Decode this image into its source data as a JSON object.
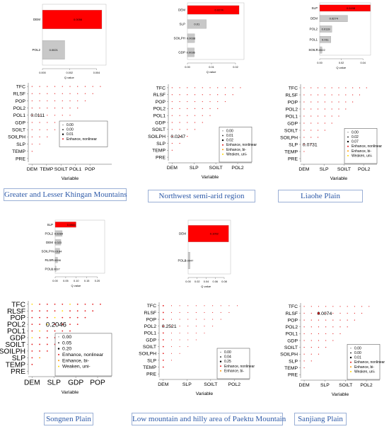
{
  "chart_data": [
    {
      "panel": "Greater and Lesser Khingan Mountains",
      "type": "bar",
      "caption": "Greater and Lesser Khingan Mountains",
      "bar": {
        "categories": [
          "DEM",
          "POL2"
        ],
        "values": [
          0.0056,
          0.0021
        ],
        "value_labels": [
          "0.0056",
          "0.0021"
        ],
        "xlabel": "Q value",
        "xticks": [
          "0.000",
          "0.002",
          "0.004"
        ],
        "xlim": [
          0,
          0.006
        ]
      },
      "matrix": {
        "variables": [
          "TFC",
          "RLSF",
          "POP",
          "POL2",
          "POL1",
          "GDP",
          "SOILT",
          "SOILPH",
          "SLP",
          "TEMP",
          "PRE"
        ],
        "x_ticks": [
          "DEM",
          "TEMP",
          "SOILT",
          "POL1",
          "POP"
        ],
        "x_count": 11,
        "xlabel": "Variable",
        "annotation": {
          "text": "0.0111",
          "row": "POL1",
          "col": 0
        },
        "legend": [
          "0.00",
          "0.00",
          "0.01",
          "Enhance, nonlinear"
        ]
      }
    },
    {
      "panel": "Northwest semi-arid region",
      "type": "bar",
      "caption": "Northwest semi-arid region",
      "bar": {
        "categories": [
          "DEM",
          "SLP",
          "SOILPH",
          "GDP"
        ],
        "values": [
          0.0274,
          0.01,
          0.0038,
          0.0036
        ],
        "value_labels": [
          "0.0274",
          "0.01",
          "0.0038",
          "0.0036"
        ],
        "xlabel": "Q value",
        "xticks": [
          "0.00",
          "0.01",
          "0.02"
        ],
        "xlim": [
          0,
          0.03
        ]
      },
      "matrix": {
        "variables": [
          "TFC",
          "RLSF",
          "POP",
          "POL2",
          "POL1",
          "GDP",
          "SOILT",
          "SOILPH",
          "SLP",
          "TEMP",
          "PRE"
        ],
        "x_ticks": [
          "DEM",
          "SLP",
          "SOILT",
          "POL2"
        ],
        "x_count": 11,
        "xlabel": "Variable",
        "annotation": {
          "text": "0.0247",
          "row": "SOILPH",
          "col": 0
        },
        "legend": [
          "0.00",
          "0.01",
          "0.02",
          "Enhance, nonlinear",
          "Enhance, bi-",
          "Weaken, uni-"
        ]
      }
    },
    {
      "panel": "Liaohe Plain",
      "type": "bar",
      "caption": "Liaohe Plain",
      "bar": {
        "categories": [
          "SLP",
          "DEM",
          "POL2",
          "POL1",
          "SOILT"
        ],
        "values": [
          0.0498,
          0.0274,
          0.0119,
          0.011,
          0.0022
        ],
        "value_labels": [
          "0.0498",
          "0.0274",
          "0.0119",
          "0.011",
          "0.0022"
        ],
        "xlabel": "Q value",
        "xticks": [
          "0.00",
          "0.02",
          "0.04"
        ],
        "xlim": [
          0,
          0.05
        ]
      },
      "matrix": {
        "variables": [
          "TFC",
          "RLSF",
          "POP",
          "POL2",
          "POL1",
          "GDP",
          "SOILT",
          "SOILPH",
          "SLP",
          "TEMP",
          "PRE"
        ],
        "x_ticks": [
          "DEM",
          "SLP",
          "SOILT",
          "POL2"
        ],
        "x_count": 11,
        "xlabel": "Variable",
        "annotation": {
          "text": "0.0731",
          "row": "SLP",
          "col": 0
        },
        "legend": [
          "0.00",
          "0.02",
          "0.07",
          "Enhance, nonlinear",
          "Enhance, bi-",
          "Weaken, uni-"
        ]
      }
    },
    {
      "panel": "Songnen Plain",
      "type": "bar",
      "caption": "Songnen Plain",
      "bar": {
        "categories": [
          "SLP",
          "POL2",
          "DEM",
          "SOILPH",
          "RLSF",
          "POL1"
        ],
        "values": [
          0.0844,
          0.0284,
          0.023,
          0.0184,
          0.0098,
          0.0037
        ],
        "value_labels": [
          "0.0844",
          "0.0284",
          "0.023",
          "0.0184",
          "0.0098",
          "0.0037"
        ],
        "xlabel": "Q value",
        "xticks": [
          "0.00",
          "0.05",
          "0.10",
          "0.15",
          "0.20"
        ],
        "xlim": [
          0,
          0.2
        ]
      },
      "matrix": {
        "variables": [
          "TFC",
          "RLSF",
          "POP",
          "POL2",
          "POL1",
          "GDP",
          "SOILT",
          "SOILPH",
          "SLP",
          "TEMP",
          "PRE"
        ],
        "x_ticks": [
          "DEM",
          "SLP",
          "GDP",
          "POP"
        ],
        "x_count": 11,
        "xlabel": "Variable",
        "annotation": {
          "text": "0.2046",
          "row": "POL2",
          "col": 2
        },
        "legend": [
          "0.00",
          "0.05",
          "0.20",
          "Enhance, nonlinear",
          "Enhance, bi-",
          "Weaken, uni-"
        ]
      }
    },
    {
      "panel": "Low mountain and hilly area of Paektu Mountain",
      "type": "bar",
      "caption": "Low mountain and hilly area of Paektu Mountain",
      "bar": {
        "categories": [
          "DEM",
          "POL2"
        ],
        "values": [
          0.1052,
          0.0047
        ],
        "value_labels": [
          "0.1052",
          "0.0047"
        ],
        "xlabel": "Q value",
        "xticks": [
          "0.00",
          "0.02",
          "0.04",
          "0.06",
          "0.08"
        ],
        "xlim": [
          0,
          0.11
        ]
      },
      "matrix": {
        "variables": [
          "TFC",
          "RLSF",
          "POP",
          "POL2",
          "POL1",
          "GDP",
          "SOILT",
          "SOILPH",
          "SLP",
          "TEMP",
          "PRE"
        ],
        "x_ticks": [
          "DEM",
          "SLP",
          "SOILT",
          "POL2"
        ],
        "x_count": 11,
        "xlabel": "Variable",
        "annotation": {
          "text": "0.2521",
          "row": "POL2",
          "col": 0
        },
        "legend": [
          "0.00",
          "0.04",
          "0.25",
          "Enhance, nonlinear",
          "Enhance, bi-"
        ]
      }
    },
    {
      "panel": "Sanjiang Plain",
      "type": "scatter",
      "caption": "Sanjiang Plain",
      "matrix": {
        "variables": [
          "TFC",
          "RLSF",
          "POP",
          "POL2",
          "POL1",
          "GDP",
          "SOILT",
          "SOILPH",
          "SLP",
          "TEMP",
          "PRE"
        ],
        "x_ticks": [
          "DEM",
          "SLP",
          "SOILT",
          "POL2"
        ],
        "x_count": 11,
        "xlabel": "Variable",
        "annotation": {
          "text": "0.0074",
          "row": "RLSF",
          "col": 2
        },
        "legend": [
          "0.00",
          "0.00",
          "0.01",
          "Enhance, nonlinear",
          "Enhance, bi-",
          "Weaken, uni-"
        ]
      }
    }
  ],
  "colors": {
    "top_bar": "#ff0000",
    "other_bar": "#c8c8c8",
    "enhance_nonlinear": "#e41a1c",
    "enhance_bi": "#ff9900",
    "weaken_uni": "#ffd700",
    "caption_text": "#2e5aa8",
    "caption_border": "#9bb0d6"
  }
}
